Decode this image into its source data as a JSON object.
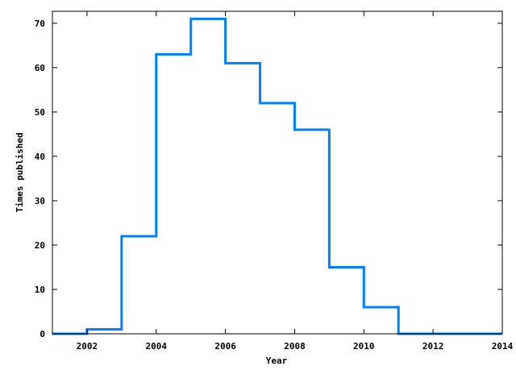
{
  "chart_data": {
    "type": "line",
    "style": "steps",
    "title": "",
    "xlabel": "Year",
    "ylabel": "Times published",
    "xlim": [
      2001,
      2014
    ],
    "ylim": [
      0,
      72.7
    ],
    "xticks": [
      "2002",
      "2004",
      "2006",
      "2008",
      "2010",
      "2012",
      "2014"
    ],
    "yticks": [
      "0",
      "10",
      "20",
      "30",
      "40",
      "50",
      "60",
      "70"
    ],
    "grid": false,
    "legend": "none",
    "series": [
      {
        "color": "#0080ff",
        "x": [
          2001,
          2002,
          2003,
          2004,
          2005,
          2006,
          2007,
          2008,
          2009,
          2010,
          2011,
          2012,
          2013,
          2014
        ],
        "y": [
          0,
          1,
          22,
          63,
          71,
          61,
          52,
          46,
          15,
          6,
          0,
          0,
          0,
          0
        ]
      }
    ]
  }
}
